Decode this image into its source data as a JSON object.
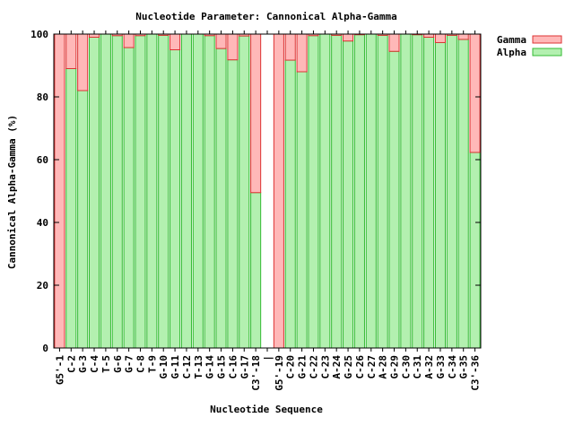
{
  "chart_data": {
    "type": "bar",
    "stacked": true,
    "title": "Nucleotide Parameter: Cannonical Alpha-Gamma",
    "xlabel": "Nucleotide Sequence",
    "ylabel": "Cannonical Alpha-Gamma (%)",
    "ylim": [
      0,
      100
    ],
    "yticks": [
      0,
      20,
      40,
      60,
      80,
      100
    ],
    "grid": false,
    "legend_position": "top-right-outside",
    "categories": [
      "G5'-1",
      "C-2",
      "G-3",
      "C-4",
      "T-5",
      "G-6",
      "G-7",
      "C-8",
      "T-9",
      "G-10",
      "G-11",
      "C-12",
      "T-13",
      "G-14",
      "G-15",
      "C-16",
      "G-17",
      "C3'-18",
      "|",
      "G5'-19",
      "C-20",
      "G-21",
      "C-22",
      "C-23",
      "A-24",
      "G-25",
      "C-26",
      "C-27",
      "A-28",
      "G-29",
      "C-30",
      "C-31",
      "A-32",
      "G-33",
      "C-34",
      "G-35",
      "C3'-36"
    ],
    "series": [
      {
        "name": "Alpha",
        "color": "#b3f0b0",
        "stroke": "#33bb33",
        "values": [
          0,
          89,
          82,
          99,
          100,
          99.5,
          95.7,
          99.5,
          100,
          99.6,
          95,
          100,
          100,
          99.5,
          95.4,
          91.8,
          99.4,
          49.5,
          null,
          0,
          91.7,
          88,
          99.5,
          100,
          99.6,
          97.8,
          99.8,
          100,
          99.6,
          94.5,
          100,
          99.8,
          99,
          97.3,
          99.6,
          98.3,
          62.3
        ]
      },
      {
        "name": "Gamma",
        "color": "#ffb8b8",
        "stroke": "#dd3333",
        "values": [
          100,
          11,
          18,
          1,
          0,
          0.5,
          4.3,
          0.5,
          0,
          0.4,
          5,
          0,
          0,
          0.5,
          4.6,
          8.2,
          0.6,
          50.5,
          null,
          100,
          8.3,
          12,
          0.5,
          0,
          0.4,
          2.2,
          0.2,
          0,
          0.4,
          5.5,
          0,
          0.2,
          1,
          2.7,
          0.4,
          1.7,
          37.7
        ]
      }
    ]
  }
}
